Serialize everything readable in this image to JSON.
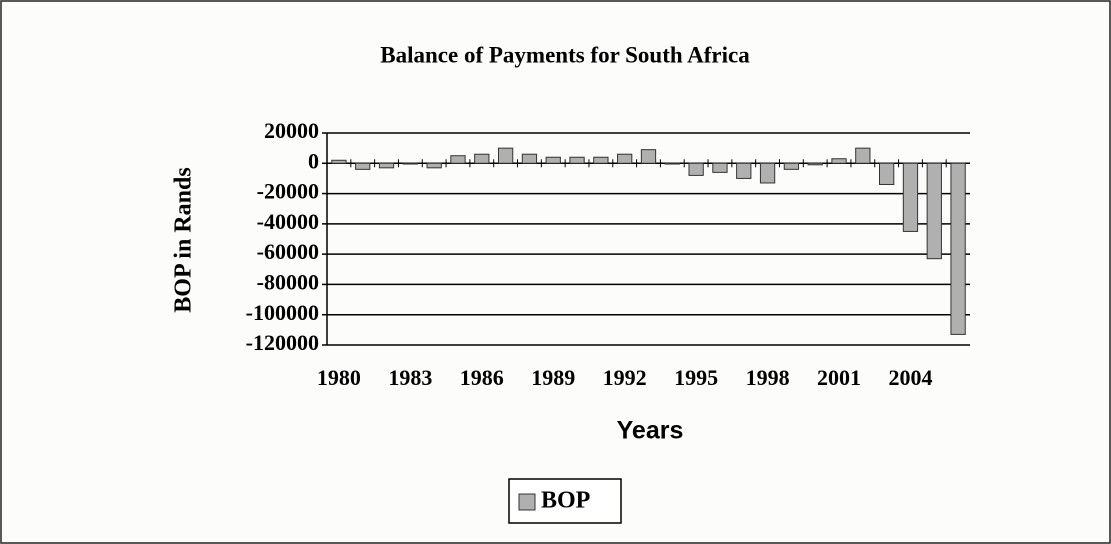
{
  "chart_data": {
    "type": "bar",
    "title": "Balance of Payments for South Africa",
    "xlabel": "Years",
    "ylabel": "BOP in Rands",
    "categories": [
      "1980",
      null,
      null,
      "1983",
      null,
      null,
      "1986",
      null,
      null,
      "1989",
      null,
      null,
      "1992",
      null,
      null,
      "1995",
      null,
      null,
      "1998",
      null,
      null,
      "2001",
      null,
      null,
      "2004",
      null,
      null
    ],
    "series": [
      {
        "name": "BOP",
        "color": "#b0b0b0",
        "values": [
          2000,
          -4000,
          -3000,
          -500,
          -3000,
          5000,
          6000,
          10000,
          6000,
          4000,
          4000,
          4000,
          6000,
          9000,
          -500,
          -8000,
          -6000,
          -10000,
          -13000,
          -4000,
          -1000,
          3000,
          10000,
          -14000,
          -45000,
          -63000,
          -113000
        ]
      }
    ],
    "ylim": [
      -120000,
      20000
    ],
    "yticks": [
      -120000,
      -100000,
      -80000,
      -60000,
      -40000,
      -20000,
      0,
      20000
    ],
    "grid": true,
    "legend": "bottom"
  }
}
